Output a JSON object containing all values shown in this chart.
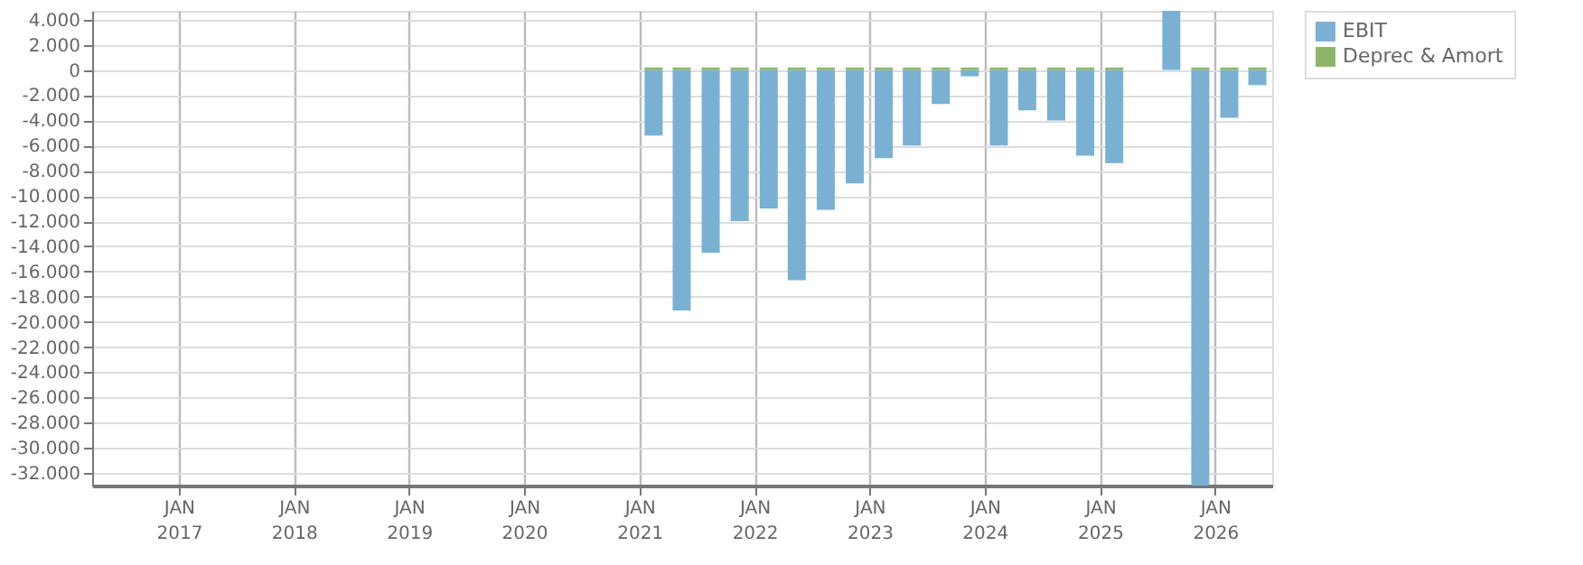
{
  "chart_data": {
    "type": "bar",
    "x": [
      "2021-02-15",
      "2021-05-15",
      "2021-08-15",
      "2021-11-15",
      "2022-02-15",
      "2022-05-15",
      "2022-08-15",
      "2022-11-15",
      "2023-02-15",
      "2023-05-15",
      "2023-08-15",
      "2023-11-15",
      "2024-02-15",
      "2024-05-15",
      "2024-08-15",
      "2024-11-15",
      "2025-02-15",
      "2025-05-15",
      "2025-08-15",
      "2025-11-15",
      "2026-02-15",
      "2026-05-15"
    ],
    "series": [
      {
        "name": "EBIT",
        "color": "#7ab1d3",
        "values": [
          -5200,
          -19100,
          -14500,
          -12000,
          -11000,
          -16700,
          -11100,
          -9000,
          -7000,
          -6000,
          -2700,
          -500,
          -6000,
          -3200,
          -4000,
          -6800,
          -7400,
          null,
          4700,
          -33000,
          -3800,
          -1200
        ]
      },
      {
        "name": "Deprec & Amort",
        "color": "#8db56a",
        "values": [
          200,
          200,
          200,
          200,
          200,
          200,
          200,
          200,
          200,
          200,
          200,
          200,
          200,
          200,
          200,
          200,
          200,
          null,
          null,
          200,
          200,
          200
        ]
      }
    ],
    "xlim": [
      "2016-04-01",
      "2026-07-01"
    ],
    "xticks": [
      {
        "value": "2017-01-01",
        "label": "JAN 2017"
      },
      {
        "value": "2018-01-01",
        "label": "JAN 2018"
      },
      {
        "value": "2019-01-01",
        "label": "JAN 2019"
      },
      {
        "value": "2020-01-01",
        "label": "JAN 2020"
      },
      {
        "value": "2021-01-01",
        "label": "JAN 2021"
      },
      {
        "value": "2022-01-01",
        "label": "JAN 2022"
      },
      {
        "value": "2023-01-01",
        "label": "JAN 2023"
      },
      {
        "value": "2024-01-01",
        "label": "JAN 2024"
      },
      {
        "value": "2025-01-01",
        "label": "JAN 2025"
      },
      {
        "value": "2026-01-01",
        "label": "JAN 2026"
      }
    ],
    "ylim": [
      -33000,
      4700
    ],
    "yticks": [
      {
        "value": 4000,
        "label": "4.000"
      },
      {
        "value": 2000,
        "label": "2.000"
      },
      0,
      {
        "value": -2000,
        "label": "-2.000"
      },
      {
        "value": -4000,
        "label": "-4.000"
      },
      {
        "value": -6000,
        "label": "-6.000"
      },
      {
        "value": -8000,
        "label": "-8.000"
      },
      {
        "value": -10000,
        "label": "-10.000"
      },
      {
        "value": -12000,
        "label": "-12.000"
      },
      {
        "value": -14000,
        "label": "-14.000"
      },
      {
        "value": -16000,
        "label": "-16.000"
      },
      {
        "value": -18000,
        "label": "-18.000"
      },
      {
        "value": -20000,
        "label": "-20.000"
      },
      {
        "value": -22000,
        "label": "-22.000"
      },
      {
        "value": -24000,
        "label": "-24.000"
      },
      {
        "value": -26000,
        "label": "-26.000"
      },
      {
        "value": -28000,
        "label": "-28.000"
      },
      {
        "value": -30000,
        "label": "-30.000"
      },
      {
        "value": -32000,
        "label": "-32.000"
      }
    ],
    "grid": true,
    "legend": "top right"
  }
}
